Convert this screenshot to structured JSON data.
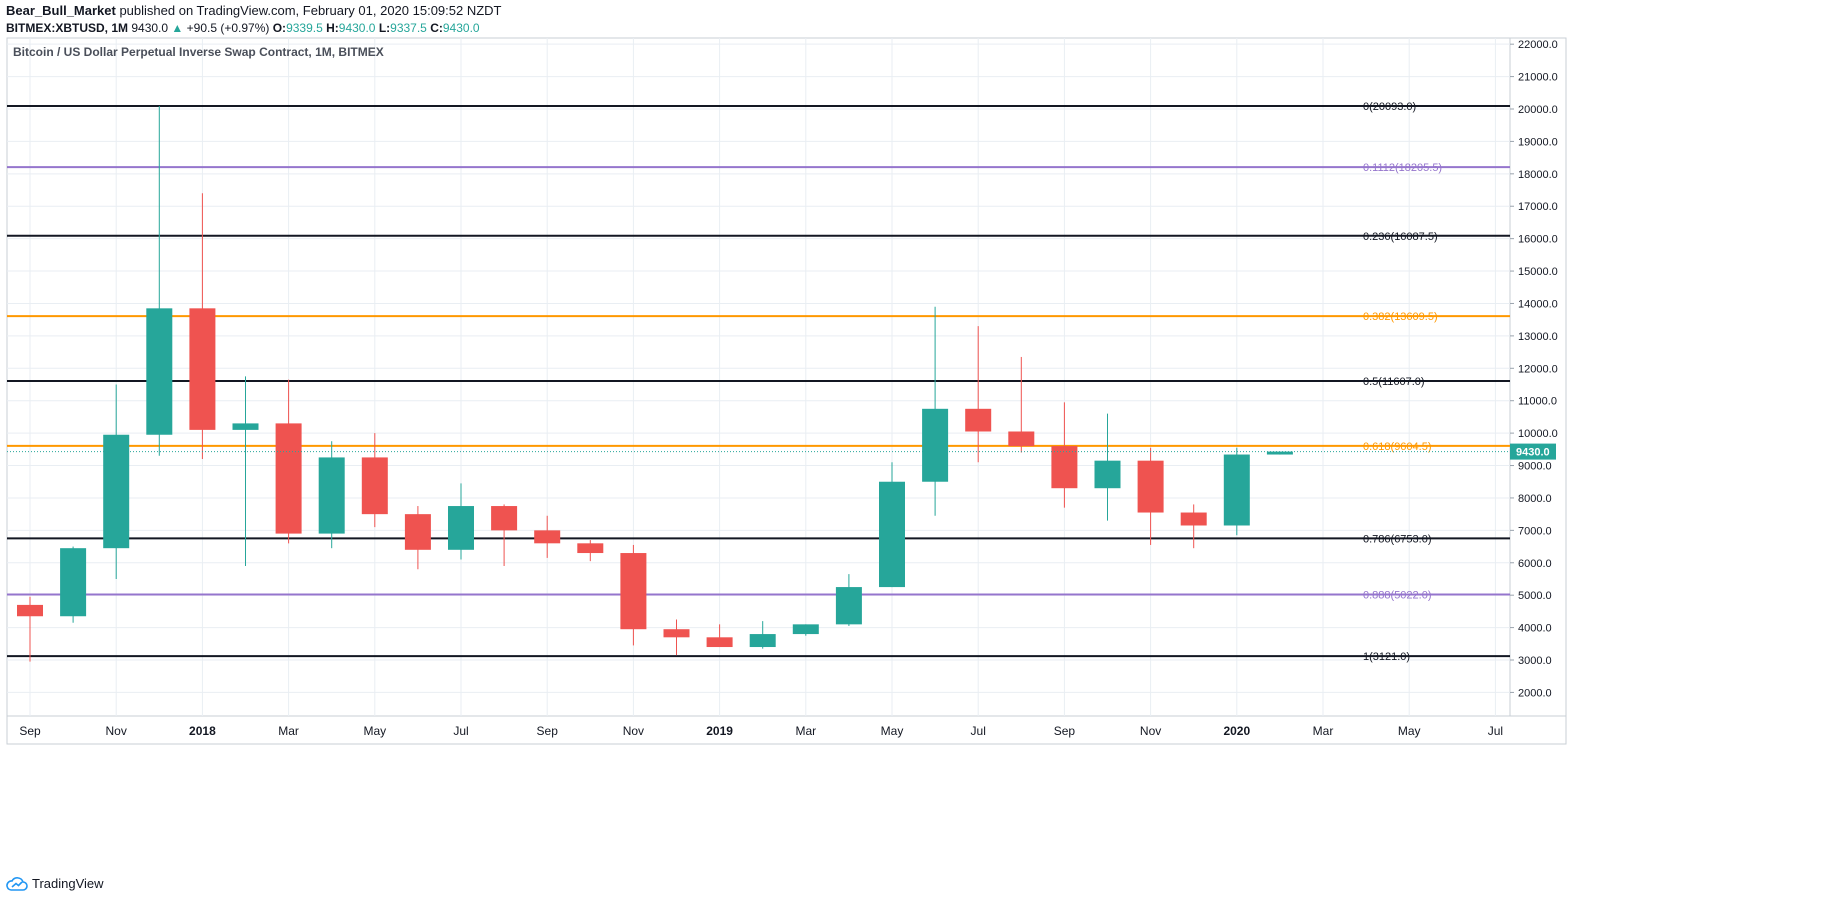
{
  "header": {
    "author": "Bear_Bull_Market",
    "published_text": "published on TradingView.com, February 01, 2020 15:09:52 NZDT",
    "symbol": "BITMEX:XBTUSD, 1M",
    "last": "9430.0",
    "change_arrow": "▲",
    "change": "+90.5 (+0.97%)",
    "o_label": "O:",
    "o_value": "9339.5",
    "h_label": "H:",
    "h_value": "9430.0",
    "l_label": "L:",
    "l_value": "9337.5",
    "c_label": "C:",
    "c_value": "9430.0"
  },
  "footer": {
    "brand": "TradingView",
    "logo_icon": "tradingview-cloud-icon"
  },
  "colors": {
    "up": "#26a69a",
    "down": "#ef5350",
    "black_fib": "#131722",
    "purple_fib": "#9575cd",
    "orange_fib": "#ff9800",
    "grid": "#e9eef3",
    "price_line": "#26a69a"
  },
  "chart_data": {
    "type": "candlestick",
    "title": "Bitcoin / US Dollar Perpetual Inverse Swap Contract, 1M, BITMEX",
    "ylim": [
      1500,
      22200
    ],
    "y_ticks": [
      2000,
      3000,
      4000,
      5000,
      6000,
      7000,
      8000,
      9000,
      10000,
      11000,
      12000,
      13000,
      14000,
      15000,
      16000,
      17000,
      18000,
      19000,
      20000,
      21000,
      22000
    ],
    "y_tick_labels": [
      "2000.0",
      "3000.0",
      "4000.0",
      "5000.0",
      "6000.0",
      "7000.0",
      "8000.0",
      "9000.0",
      "10000.0",
      "11000.0",
      "12000.0",
      "13000.0",
      "14000.0",
      "15000.0",
      "16000.0",
      "17000.0",
      "18000.0",
      "19000.0",
      "20000.0",
      "21000.0",
      "22000.0"
    ],
    "x_tick_labels": [
      {
        "label": "Sep",
        "index": 0,
        "bold": false
      },
      {
        "label": "Nov",
        "index": 2,
        "bold": false
      },
      {
        "label": "2018",
        "index": 4,
        "bold": true
      },
      {
        "label": "Mar",
        "index": 6,
        "bold": false
      },
      {
        "label": "May",
        "index": 8,
        "bold": false
      },
      {
        "label": "Jul",
        "index": 10,
        "bold": false
      },
      {
        "label": "Sep",
        "index": 12,
        "bold": false
      },
      {
        "label": "Nov",
        "index": 14,
        "bold": false
      },
      {
        "label": "2019",
        "index": 16,
        "bold": true
      },
      {
        "label": "Mar",
        "index": 18,
        "bold": false
      },
      {
        "label": "May",
        "index": 20,
        "bold": false
      },
      {
        "label": "Jul",
        "index": 22,
        "bold": false
      },
      {
        "label": "Sep",
        "index": 24,
        "bold": false
      },
      {
        "label": "Nov",
        "index": 26,
        "bold": false
      },
      {
        "label": "2020",
        "index": 28,
        "bold": true
      },
      {
        "label": "Mar",
        "index": 30,
        "bold": false
      },
      {
        "label": "May",
        "index": 32,
        "bold": false
      },
      {
        "label": "Jul",
        "index": 34,
        "bold": false
      }
    ],
    "candles": [
      {
        "date": "2017-09",
        "open": 4700,
        "high": 4950,
        "low": 2950,
        "close": 4350
      },
      {
        "date": "2017-10",
        "open": 4350,
        "high": 6500,
        "low": 4150,
        "close": 6450
      },
      {
        "date": "2017-11",
        "open": 6450,
        "high": 11500,
        "low": 5500,
        "close": 9950
      },
      {
        "date": "2017-12",
        "open": 9950,
        "high": 20093,
        "low": 9300,
        "close": 13850
      },
      {
        "date": "2018-01",
        "open": 13850,
        "high": 17400,
        "low": 9200,
        "close": 10100
      },
      {
        "date": "2018-02",
        "open": 10100,
        "high": 11750,
        "low": 5900,
        "close": 10300
      },
      {
        "date": "2018-03",
        "open": 10300,
        "high": 11650,
        "low": 6600,
        "close": 6900
      },
      {
        "date": "2018-04",
        "open": 6900,
        "high": 9750,
        "low": 6450,
        "close": 9250
      },
      {
        "date": "2018-05",
        "open": 9250,
        "high": 10000,
        "low": 7100,
        "close": 7500
      },
      {
        "date": "2018-06",
        "open": 7500,
        "high": 7750,
        "low": 5800,
        "close": 6400
      },
      {
        "date": "2018-07",
        "open": 6400,
        "high": 8450,
        "low": 6100,
        "close": 7750
      },
      {
        "date": "2018-08",
        "open": 7750,
        "high": 7800,
        "low": 5900,
        "close": 7000
      },
      {
        "date": "2018-09",
        "open": 7000,
        "high": 7450,
        "low": 6150,
        "close": 6600
      },
      {
        "date": "2018-10",
        "open": 6600,
        "high": 6700,
        "low": 6050,
        "close": 6300
      },
      {
        "date": "2018-11",
        "open": 6300,
        "high": 6550,
        "low": 3450,
        "close": 3950
      },
      {
        "date": "2018-12",
        "open": 3950,
        "high": 4250,
        "low": 3150,
        "close": 3700
      },
      {
        "date": "2019-01",
        "open": 3700,
        "high": 4100,
        "low": 3400,
        "close": 3400
      },
      {
        "date": "2019-02",
        "open": 3400,
        "high": 4200,
        "low": 3350,
        "close": 3800
      },
      {
        "date": "2019-03",
        "open": 3800,
        "high": 4100,
        "low": 3750,
        "close": 4100
      },
      {
        "date": "2019-04",
        "open": 4100,
        "high": 5650,
        "low": 4050,
        "close": 5250
      },
      {
        "date": "2019-05",
        "open": 5250,
        "high": 9100,
        "low": 5250,
        "close": 8500
      },
      {
        "date": "2019-06",
        "open": 8500,
        "high": 13900,
        "low": 7450,
        "close": 10750
      },
      {
        "date": "2019-07",
        "open": 10750,
        "high": 13300,
        "low": 9100,
        "close": 10050
      },
      {
        "date": "2019-08",
        "open": 10050,
        "high": 12350,
        "low": 9400,
        "close": 9600
      },
      {
        "date": "2019-09",
        "open": 9600,
        "high": 10950,
        "low": 7700,
        "close": 8300
      },
      {
        "date": "2019-10",
        "open": 8300,
        "high": 10600,
        "low": 7300,
        "close": 9150
      },
      {
        "date": "2019-11",
        "open": 9150,
        "high": 9550,
        "low": 6550,
        "close": 7550
      },
      {
        "date": "2019-12",
        "open": 7550,
        "high": 7800,
        "low": 6450,
        "close": 7150
      },
      {
        "date": "2020-01",
        "open": 7150,
        "high": 9550,
        "low": 6850,
        "close": 9339.5
      },
      {
        "date": "2020-02",
        "open": 9339.5,
        "high": 9430,
        "low": 9337.5,
        "close": 9430
      }
    ],
    "fib_levels": [
      {
        "label": "0(20093.0)",
        "value": 20093,
        "color": "#131722"
      },
      {
        "label": "0.1112(18205.5)",
        "value": 18205.5,
        "color": "#9575cd"
      },
      {
        "label": "0.236(16087.5)",
        "value": 16087.5,
        "color": "#131722"
      },
      {
        "label": "0.382(13609.5)",
        "value": 13609.5,
        "color": "#ff9800"
      },
      {
        "label": "0.5(11607.0)",
        "value": 11607,
        "color": "#131722"
      },
      {
        "label": "0.618(9604.5)",
        "value": 9604.5,
        "color": "#ff9800"
      },
      {
        "label": "0.786(6753.0)",
        "value": 6753,
        "color": "#131722"
      },
      {
        "label": "0.888(5022.0)",
        "value": 5022,
        "color": "#9575cd"
      },
      {
        "label": "1(3121.0)",
        "value": 3121,
        "color": "#131722"
      }
    ],
    "last_price": 9430,
    "last_price_label": "9430.0"
  }
}
